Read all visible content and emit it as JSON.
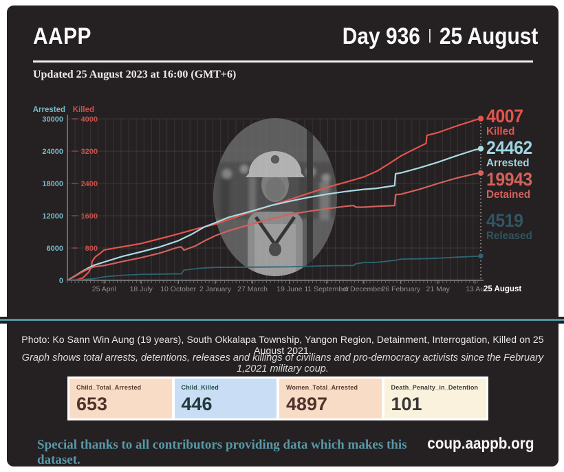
{
  "header": {
    "brand": "AAPP",
    "day": "Day 936",
    "separator": "|",
    "date": "25 August",
    "updated": "Updated 25 August 2023 at 16:00 (GMT+6)"
  },
  "caption": {
    "photo_line": "Photo: Ko Sann Win Aung (19 years), South Okkalapa Township, Yangon Region, Detainment, Interrogation, Killed on 25 August 2021.",
    "graph_note": "Graph shows total arrests, detentions, releases and killings of civilians and pro-democracy activists since the February 1,2021 military coup."
  },
  "stat_cards": [
    {
      "label": "Child_Total_Arrested",
      "value": "653",
      "bg": "#f9dcc6",
      "label_fg": "#5a382f",
      "value_fg": "#4f332c"
    },
    {
      "label": "Child_Killed",
      "value": "446",
      "bg": "#c9def5",
      "label_fg": "#1e4a47",
      "value_fg": "#243a3c"
    },
    {
      "label": "Women_Total_Arrested",
      "value": "4897",
      "bg": "#f9dcc6",
      "label_fg": "#5a382f",
      "value_fg": "#4f332c"
    },
    {
      "label": "Death_Penalty_in_Detention",
      "value": "101",
      "bg": "#faf2dc",
      "label_fg": "#3c3c3c",
      "value_fg": "#373737"
    }
  ],
  "footer": {
    "thanks": "Special thanks to all contributors providing data which makes this dataset.",
    "site": "coup.aappb.org"
  },
  "colors": {
    "card_bg": "#252021",
    "divider_teal": "#4c98a6",
    "killed_red": "#e4544d",
    "arrested_teal": "#a9dbe5",
    "detained_salmon": "#d2625b",
    "released_dark_teal": "#2e6573"
  },
  "chart_data": {
    "type": "line",
    "title": "",
    "x_domain_days_since_coup": [
      0,
      936
    ],
    "x_tick_days": [
      83,
      167,
      251,
      335,
      419,
      503,
      587,
      671,
      755,
      839,
      923
    ],
    "x_tick_labels": [
      "25 April",
      "18 July",
      "10 October",
      "2 January",
      "27 March",
      "19 June",
      "11 September",
      "4 December",
      "26 February",
      "21 May",
      "13 Au"
    ],
    "x_current_day": 936,
    "x_current_label": "25 August",
    "grid": true,
    "legend_position": "right-end-labels",
    "axes": {
      "arrested": {
        "title": "Arrested",
        "color": "#74bac8",
        "range": [
          0,
          30000
        ],
        "ticks": [
          30000,
          24000,
          18000,
          12000,
          6000,
          0
        ]
      },
      "killed": {
        "title": "Killed",
        "color": "#c4524e",
        "range": [
          0,
          4000
        ],
        "ticks": [
          4000,
          3200,
          2400,
          1600,
          800
        ]
      }
    },
    "series": [
      {
        "name": "Killed",
        "axis": "killed",
        "final_value": 4007,
        "line_color": "#e4544d",
        "label_color": "#e4544d",
        "line_width": 2.2,
        "dot_r": 4.2,
        "points": [
          [
            0,
            0
          ],
          [
            20,
            8
          ],
          [
            35,
            60
          ],
          [
            48,
            200
          ],
          [
            54,
            330
          ],
          [
            56,
            470
          ],
          [
            63,
            580
          ],
          [
            72,
            650
          ],
          [
            83,
            751
          ],
          [
            110,
            805
          ],
          [
            140,
            860
          ],
          [
            167,
            912
          ],
          [
            200,
            1005
          ],
          [
            230,
            1090
          ],
          [
            251,
            1150
          ],
          [
            290,
            1270
          ],
          [
            335,
            1390
          ],
          [
            380,
            1560
          ],
          [
            419,
            1700
          ],
          [
            460,
            1850
          ],
          [
            503,
            2000
          ],
          [
            545,
            2150
          ],
          [
            587,
            2300
          ],
          [
            630,
            2430
          ],
          [
            671,
            2560
          ],
          [
            700,
            2700
          ],
          [
            730,
            2900
          ],
          [
            755,
            3080
          ],
          [
            780,
            3220
          ],
          [
            812,
            3390
          ],
          [
            814,
            3590
          ],
          [
            839,
            3660
          ],
          [
            880,
            3820
          ],
          [
            923,
            3970
          ],
          [
            936,
            4007
          ]
        ]
      },
      {
        "name": "Arrested",
        "axis": "arrested",
        "final_value": 24462,
        "line_color": "#a9dbe5",
        "label_color": "#9fd4e0",
        "line_width": 2.2,
        "dot_r": 4.2,
        "points": [
          [
            0,
            0
          ],
          [
            15,
            700
          ],
          [
            30,
            1500
          ],
          [
            45,
            2200
          ],
          [
            60,
            2800
          ],
          [
            83,
            3400
          ],
          [
            125,
            4450
          ],
          [
            167,
            5300
          ],
          [
            209,
            6200
          ],
          [
            251,
            7350
          ],
          [
            280,
            8500
          ],
          [
            310,
            9900
          ],
          [
            335,
            10700
          ],
          [
            365,
            11700
          ],
          [
            419,
            12900
          ],
          [
            461,
            13900
          ],
          [
            503,
            14700
          ],
          [
            545,
            15400
          ],
          [
            587,
            16000
          ],
          [
            629,
            16500
          ],
          [
            671,
            16900
          ],
          [
            700,
            17100
          ],
          [
            741,
            17600
          ],
          [
            743,
            19800
          ],
          [
            755,
            19950
          ],
          [
            797,
            20900
          ],
          [
            839,
            21950
          ],
          [
            881,
            23150
          ],
          [
            923,
            24250
          ],
          [
            936,
            24462
          ]
        ]
      },
      {
        "name": "Detained",
        "axis": "arrested",
        "final_value": 19943,
        "line_color": "#d2625b",
        "label_color": "#d2625b",
        "line_width": 2.2,
        "dot_r": 4.2,
        "points": [
          [
            0,
            0
          ],
          [
            15,
            650
          ],
          [
            30,
            1400
          ],
          [
            45,
            2000
          ],
          [
            60,
            2500
          ],
          [
            83,
            2750
          ],
          [
            125,
            3500
          ],
          [
            167,
            4200
          ],
          [
            209,
            5050
          ],
          [
            251,
            6150
          ],
          [
            258,
            6200
          ],
          [
            264,
            5600
          ],
          [
            290,
            6400
          ],
          [
            310,
            7300
          ],
          [
            335,
            8300
          ],
          [
            365,
            9200
          ],
          [
            419,
            10500
          ],
          [
            461,
            11400
          ],
          [
            503,
            12250
          ],
          [
            545,
            12800
          ],
          [
            587,
            13300
          ],
          [
            629,
            13750
          ],
          [
            648,
            13900
          ],
          [
            653,
            13600
          ],
          [
            671,
            13600
          ],
          [
            700,
            13750
          ],
          [
            741,
            13900
          ],
          [
            743,
            15900
          ],
          [
            755,
            16000
          ],
          [
            797,
            16900
          ],
          [
            839,
            18000
          ],
          [
            881,
            19000
          ],
          [
            923,
            19800
          ],
          [
            936,
            19943
          ]
        ]
      },
      {
        "name": "Released",
        "axis": "arrested",
        "final_value": 4519,
        "line_color": "#2e6573",
        "label_color": "#33606e",
        "line_width": 1.8,
        "dot_r": 3.6,
        "points": [
          [
            0,
            0
          ],
          [
            30,
            100
          ],
          [
            60,
            300
          ],
          [
            83,
            650
          ],
          [
            125,
            950
          ],
          [
            167,
            1100
          ],
          [
            209,
            1150
          ],
          [
            251,
            1200
          ],
          [
            258,
            1200
          ],
          [
            264,
            1900
          ],
          [
            300,
            2250
          ],
          [
            335,
            2400
          ],
          [
            419,
            2450
          ],
          [
            503,
            2500
          ],
          [
            545,
            2600
          ],
          [
            587,
            2700
          ],
          [
            629,
            2750
          ],
          [
            648,
            2760
          ],
          [
            653,
            3060
          ],
          [
            671,
            3300
          ],
          [
            700,
            3350
          ],
          [
            741,
            3700
          ],
          [
            755,
            3950
          ],
          [
            797,
            4000
          ],
          [
            839,
            4100
          ],
          [
            881,
            4300
          ],
          [
            923,
            4450
          ],
          [
            936,
            4519
          ]
        ]
      }
    ]
  }
}
